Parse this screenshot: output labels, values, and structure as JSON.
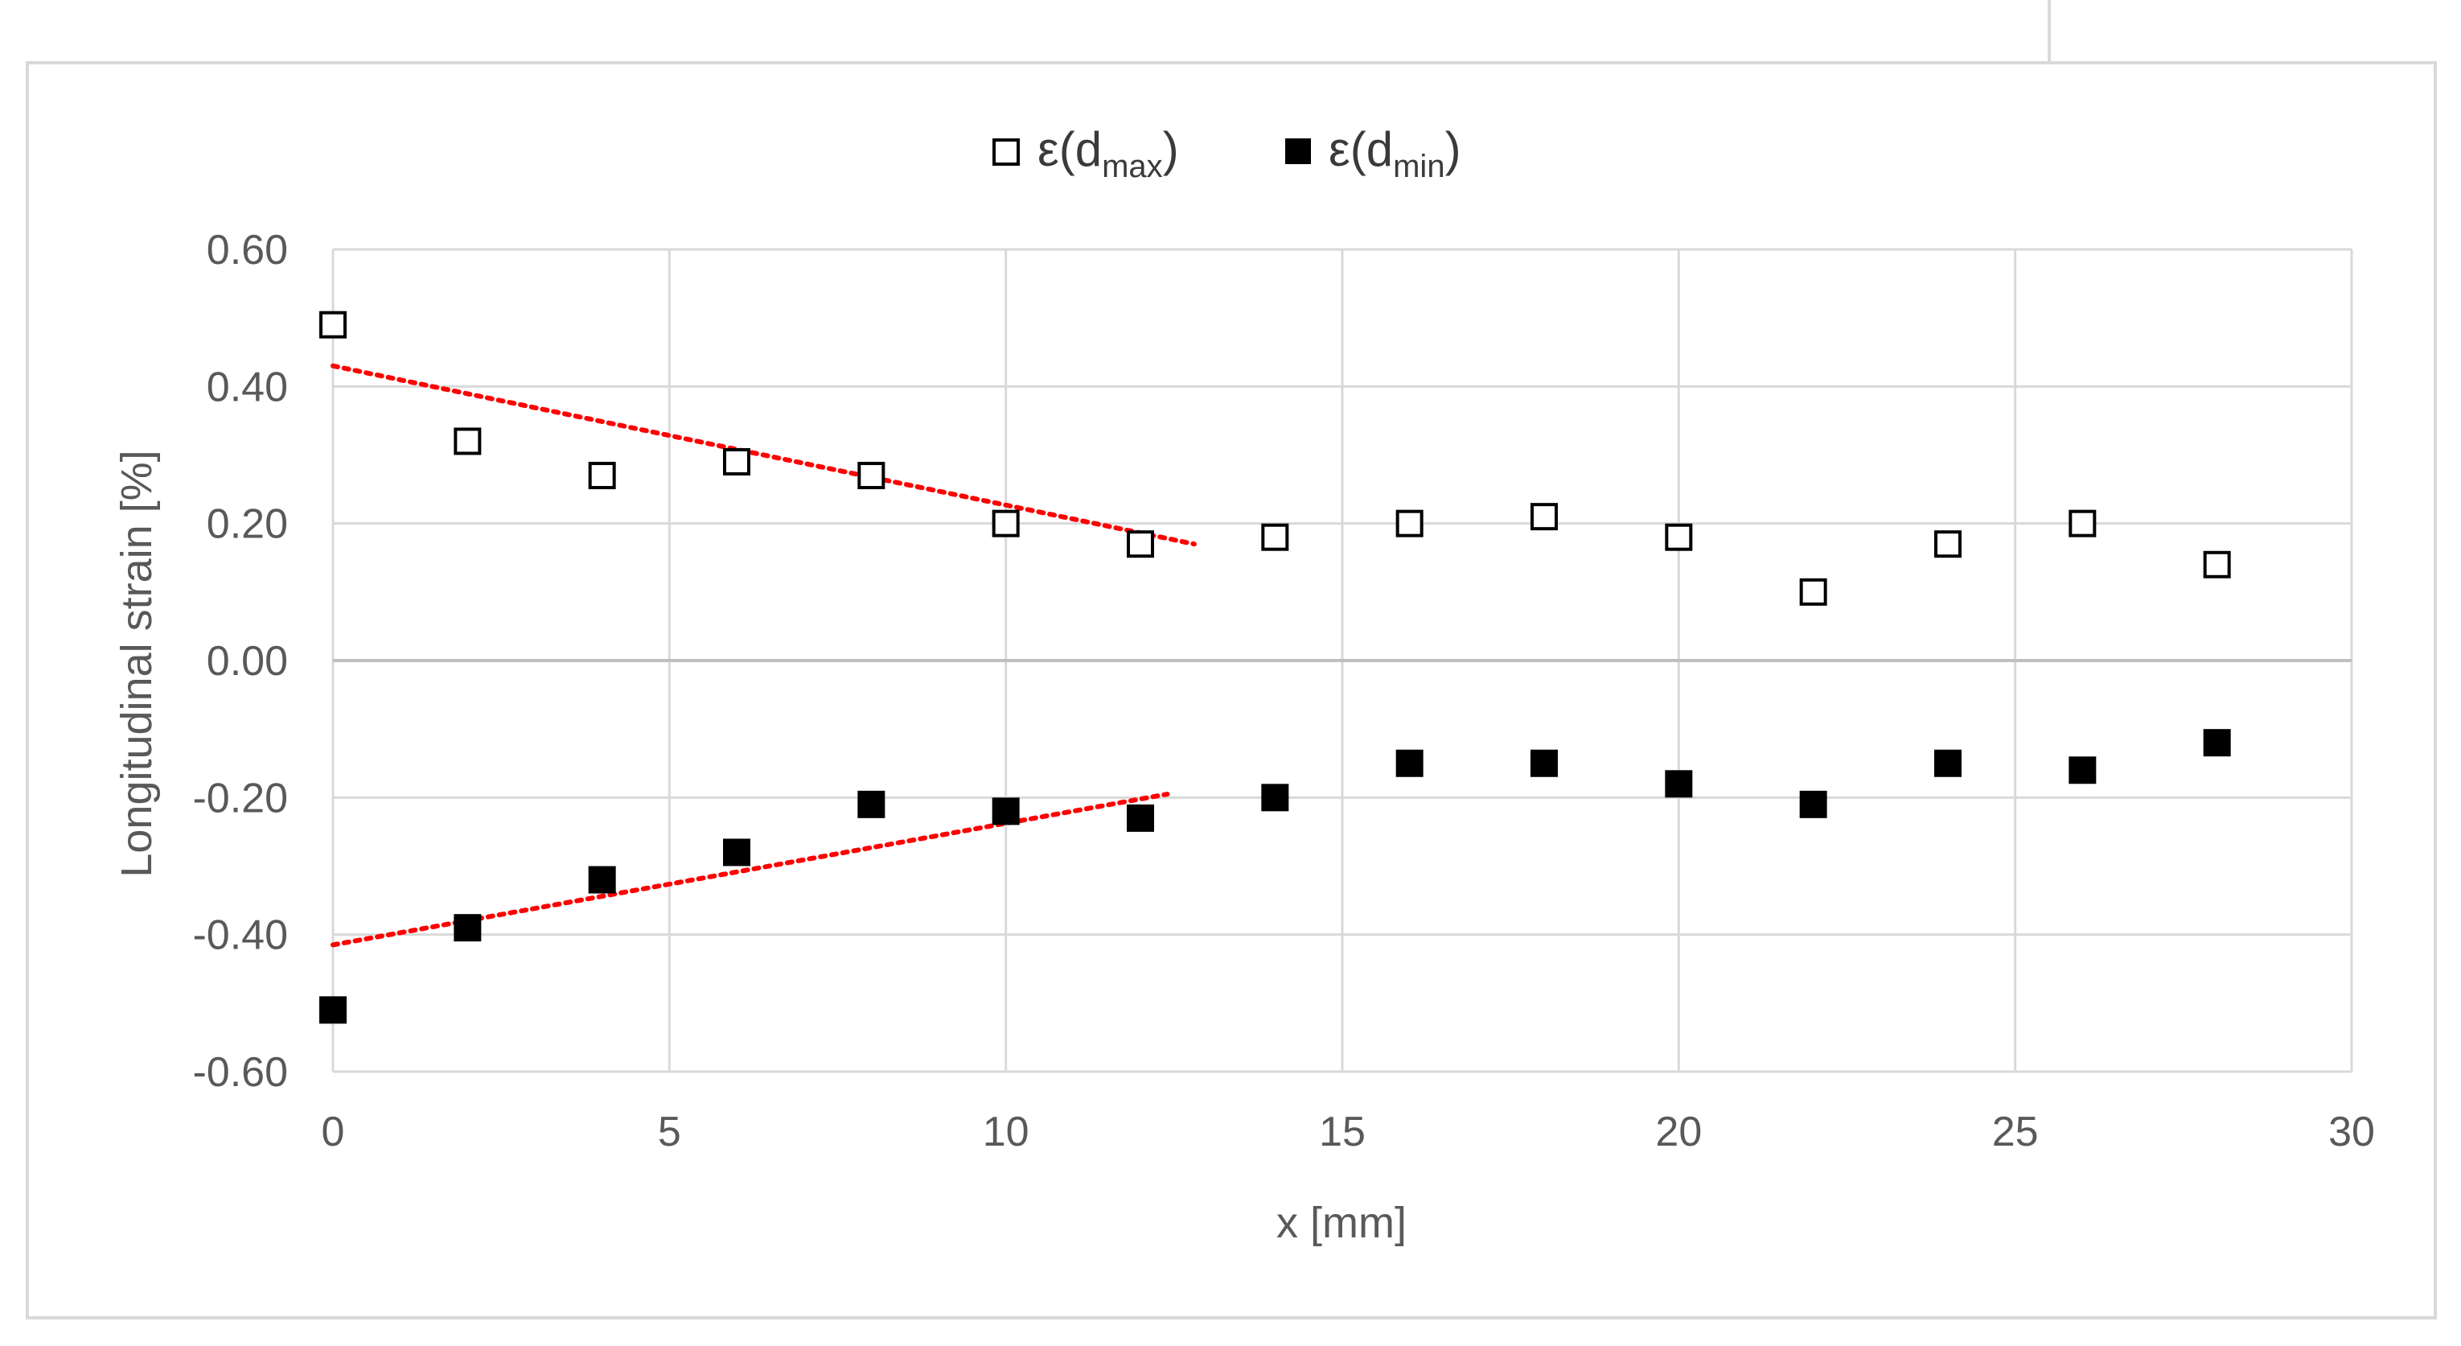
{
  "chart_data": {
    "type": "scatter",
    "title": "",
    "xlabel": "x [mm]",
    "ylabel": "Longitudinal strain [%]",
    "xlim": [
      0,
      30
    ],
    "ylim": [
      -0.6,
      0.6
    ],
    "x_ticks": [
      "0",
      "5",
      "10",
      "15",
      "20",
      "25",
      "30"
    ],
    "y_ticks": [
      "-0.60",
      "-0.40",
      "-0.20",
      "0.00",
      "0.20",
      "0.40",
      "0.60"
    ],
    "grid": true,
    "legend_position": "top-center",
    "series": [
      {
        "name_main": "ε(d",
        "name_sub": "max",
        "name_end": ")",
        "marker": "hollow-square",
        "color": "#000000",
        "x": [
          0,
          2,
          4,
          6,
          8,
          10,
          12,
          14,
          16,
          18,
          20,
          22,
          24,
          26,
          28
        ],
        "y": [
          0.49,
          0.32,
          0.27,
          0.29,
          0.27,
          0.2,
          0.17,
          0.18,
          0.2,
          0.21,
          0.18,
          0.1,
          0.17,
          0.2,
          0.14
        ]
      },
      {
        "name_main": "ε(d",
        "name_sub": "min",
        "name_end": ")",
        "marker": "filled-square",
        "color": "#000000",
        "x": [
          0,
          2,
          4,
          6,
          8,
          10,
          12,
          14,
          16,
          18,
          20,
          22,
          24,
          26,
          28
        ],
        "y": [
          -0.51,
          -0.39,
          -0.32,
          -0.28,
          -0.21,
          -0.22,
          -0.23,
          -0.2,
          -0.15,
          -0.15,
          -0.18,
          -0.21,
          -0.15,
          -0.16,
          -0.12
        ]
      }
    ],
    "trendlines": [
      {
        "style": "dotted",
        "color": "#ff0000",
        "x": [
          0,
          12.8
        ],
        "y": [
          0.43,
          0.17
        ]
      },
      {
        "style": "dotted",
        "color": "#ff0000",
        "x": [
          0,
          12.4
        ],
        "y": [
          -0.415,
          -0.195
        ]
      }
    ]
  }
}
